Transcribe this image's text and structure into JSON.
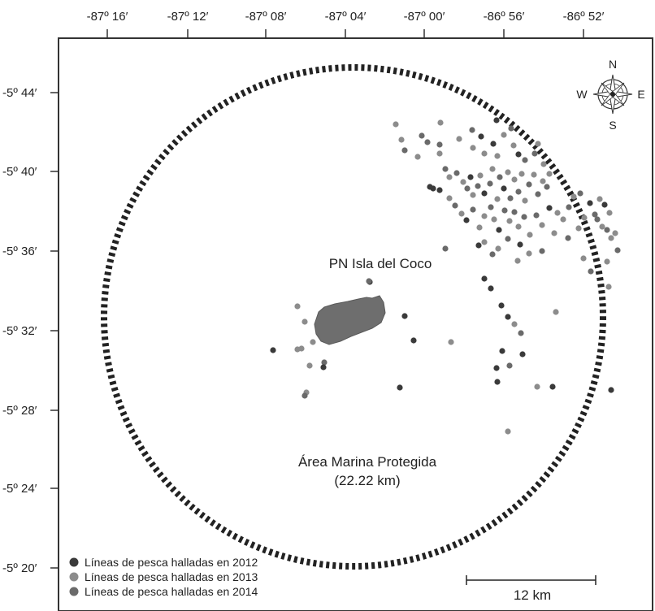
{
  "axes": {
    "longitude_labels": [
      "-87º 16′",
      "-87º 12′",
      "-87º 08′",
      "-87º 04′",
      "-87º 00′",
      "-86º 56′",
      "-86º 52′"
    ],
    "latitude_labels": [
      "-5º 44′",
      "-5º 40′",
      "-5º 36′",
      "-5º 32′",
      "-5º 28′",
      "-5º 24′",
      "-5º 20′"
    ]
  },
  "labels": {
    "island": "PN Isla del Coco",
    "protected_area_line1": "Área Marina Protegida",
    "protected_area_line2": "(22.22 km)"
  },
  "compass": {
    "n": "N",
    "s": "S",
    "e": "E",
    "w": "W",
    "icon": "compass-rose-icon"
  },
  "scale_bar": {
    "label": "12 km"
  },
  "legend": [
    {
      "label": "Líneas de pesca halladas en 2012",
      "color": "#3a3a3a"
    },
    {
      "label": "Líneas de pesca halladas en 2013",
      "color": "#8c8c8c"
    },
    {
      "label": "Líneas de pesca halladas en 2014",
      "color": "#6a6a6a"
    }
  ],
  "colors": {
    "island": "#6e6e6e",
    "boundary": "#222222",
    "frame": "#333333"
  }
}
